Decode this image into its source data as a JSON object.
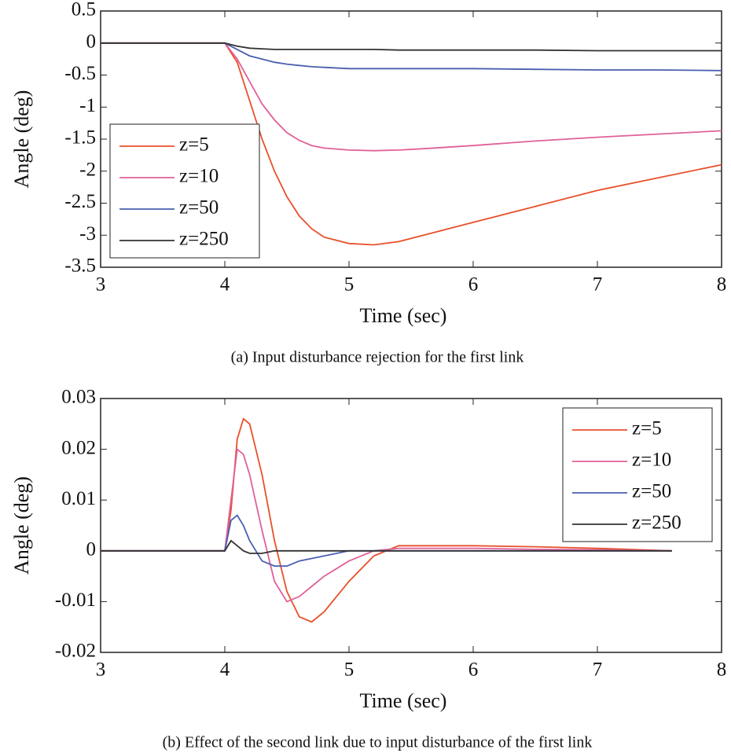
{
  "chart_data": [
    {
      "type": "line",
      "xlabel": "Time (sec)",
      "ylabel": "Angle (deg)",
      "caption": "(a)  Input disturbance rejection for the first link",
      "xlim": [
        3,
        8
      ],
      "xticks": [
        3,
        4,
        5,
        6,
        7,
        8
      ],
      "ylim": [
        -3.5,
        0.5
      ],
      "yticks": [
        0.5,
        0,
        -0.5,
        -1,
        -1.5,
        -2,
        -2.5,
        -3,
        -3.5
      ],
      "legend": "lower left",
      "x": [
        3,
        4,
        4.1,
        4.2,
        4.3,
        4.4,
        4.5,
        4.6,
        4.7,
        4.8,
        5,
        5.2,
        5.4,
        5.6,
        6,
        6.5,
        7,
        7.5,
        8
      ],
      "series": [
        {
          "name": "z=5",
          "color": "#e8502a",
          "values": [
            0,
            0,
            -0.3,
            -0.9,
            -1.5,
            -2.0,
            -2.4,
            -2.7,
            -2.9,
            -3.03,
            -3.13,
            -3.15,
            -3.1,
            -3.0,
            -2.8,
            -2.55,
            -2.3,
            -2.1,
            -1.9
          ]
        },
        {
          "name": "z=10",
          "color": "#e0609a",
          "values": [
            0,
            0,
            -0.25,
            -0.6,
            -0.95,
            -1.2,
            -1.4,
            -1.52,
            -1.6,
            -1.64,
            -1.67,
            -1.68,
            -1.67,
            -1.65,
            -1.6,
            -1.53,
            -1.47,
            -1.42,
            -1.37
          ]
        },
        {
          "name": "z=50",
          "color": "#4a5fb0",
          "values": [
            0,
            0,
            -0.1,
            -0.2,
            -0.25,
            -0.3,
            -0.33,
            -0.35,
            -0.37,
            -0.38,
            -0.4,
            -0.4,
            -0.4,
            -0.4,
            -0.4,
            -0.41,
            -0.42,
            -0.42,
            -0.43
          ]
        },
        {
          "name": "z=250",
          "color": "#333333",
          "values": [
            0,
            0,
            -0.05,
            -0.08,
            -0.09,
            -0.1,
            -0.1,
            -0.1,
            -0.1,
            -0.1,
            -0.1,
            -0.1,
            -0.11,
            -0.11,
            -0.11,
            -0.11,
            -0.12,
            -0.12,
            -0.12
          ]
        }
      ]
    },
    {
      "type": "line",
      "xlabel": "Time (sec)",
      "ylabel": "Angle (deg)",
      "caption": "(b)  Effect of the second link due to input disturbance of the first link",
      "xlim": [
        3,
        8
      ],
      "xticks": [
        3,
        4,
        5,
        6,
        7,
        8
      ],
      "ylim": [
        -0.02,
        0.03
      ],
      "yticks": [
        0.03,
        0.02,
        0.01,
        0,
        -0.01,
        -0.02
      ],
      "legend": "upper right",
      "x": [
        3,
        4,
        4.05,
        4.1,
        4.15,
        4.2,
        4.3,
        4.4,
        4.5,
        4.6,
        4.7,
        4.8,
        5,
        5.2,
        5.4,
        5.6,
        6,
        6.5,
        7,
        7.6
      ],
      "series": [
        {
          "name": "z=5",
          "color": "#e8502a",
          "values": [
            0,
            0,
            0.008,
            0.022,
            0.026,
            0.025,
            0.015,
            0.002,
            -0.008,
            -0.013,
            -0.014,
            -0.012,
            -0.006,
            -0.001,
            0.001,
            0.001,
            0.001,
            0.0008,
            0.0005,
            0
          ]
        },
        {
          "name": "z=10",
          "color": "#e0609a",
          "values": [
            0,
            0,
            0.01,
            0.02,
            0.019,
            0.015,
            0.004,
            -0.006,
            -0.01,
            -0.009,
            -0.007,
            -0.005,
            -0.002,
            0,
            0.0005,
            0.0005,
            0.0005,
            0.0003,
            0.0002,
            0
          ]
        },
        {
          "name": "z=50",
          "color": "#4a5fb0",
          "values": [
            0,
            0,
            0.006,
            0.007,
            0.005,
            0.002,
            -0.002,
            -0.003,
            -0.003,
            -0.002,
            -0.0015,
            -0.001,
            0,
            0,
            0,
            0,
            0,
            0,
            0,
            0
          ]
        },
        {
          "name": "z=250",
          "color": "#333333",
          "values": [
            0,
            0,
            0.002,
            0.001,
            0,
            -0.0005,
            -0.0005,
            0,
            0,
            0,
            0,
            0,
            0,
            0,
            0,
            0,
            0,
            0,
            0,
            0
          ]
        }
      ]
    }
  ]
}
